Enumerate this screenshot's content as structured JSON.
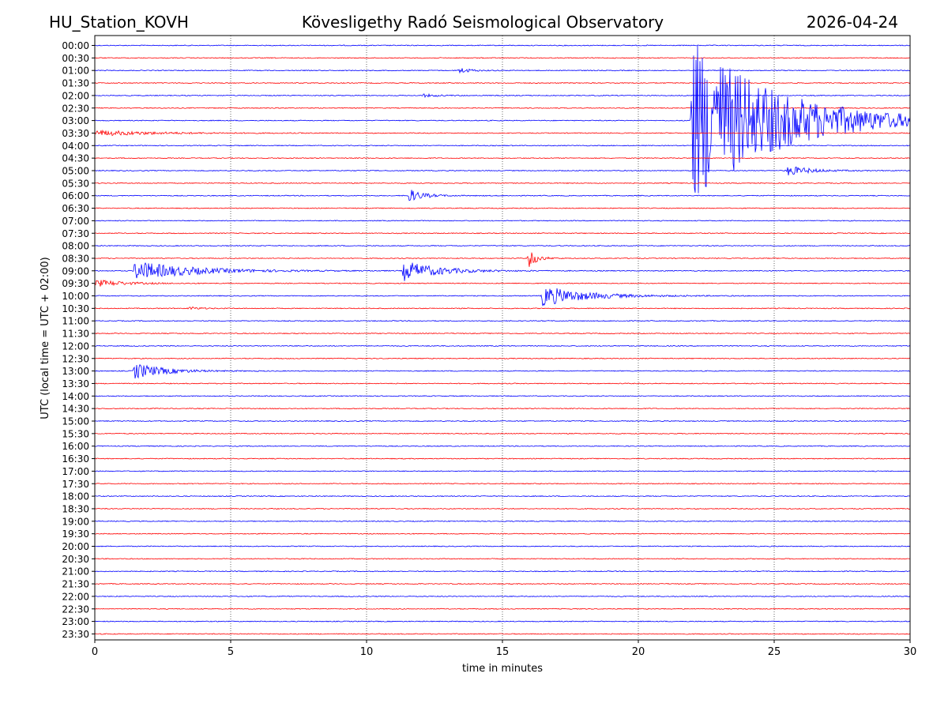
{
  "chart_data": {
    "type": "line",
    "title_left": "HU_Station_KOVH",
    "title_center": "Kövesligethy Radó Seismological Observatory",
    "title_right": "2026-04-24",
    "xlabel": "time in minutes",
    "ylabel": "UTC (local time = UTC + 02:00)",
    "xlim": [
      0,
      30
    ],
    "xticks": [
      0,
      5,
      10,
      15,
      20,
      25,
      30
    ],
    "grid": "vertical dotted at x ticks",
    "colors": [
      "#0000ff",
      "#ff0000"
    ],
    "rows": [
      "00:00",
      "00:30",
      "01:00",
      "01:30",
      "02:00",
      "02:30",
      "03:00",
      "03:30",
      "04:00",
      "04:30",
      "05:00",
      "05:30",
      "06:00",
      "06:30",
      "07:00",
      "07:30",
      "08:00",
      "08:30",
      "09:00",
      "09:30",
      "10:00",
      "10:30",
      "11:00",
      "11:30",
      "12:00",
      "12:30",
      "13:00",
      "13:30",
      "14:00",
      "14:30",
      "15:00",
      "15:30",
      "16:00",
      "16:30",
      "17:00",
      "17:30",
      "18:00",
      "18:30",
      "19:00",
      "19:30",
      "20:00",
      "20:30",
      "21:00",
      "21:30",
      "22:00",
      "22:30",
      "23:00",
      "23:30"
    ],
    "events": [
      {
        "row": 2,
        "start_min": 13.3,
        "amp": 0.6,
        "decay_min": 0.4
      },
      {
        "row": 4,
        "start_min": 12.0,
        "amp": 0.25,
        "decay_min": 0.6
      },
      {
        "row": 6,
        "start_min": 21.9,
        "amp": 14,
        "decay_min": 3.0
      },
      {
        "row": 7,
        "start_min": 0.0,
        "amp": 0.45,
        "decay_min": 2.0
      },
      {
        "row": 10,
        "start_min": 25.4,
        "amp": 0.9,
        "decay_min": 0.8
      },
      {
        "row": 12,
        "start_min": 11.5,
        "amp": 1.2,
        "decay_min": 0.5
      },
      {
        "row": 17,
        "start_min": 15.9,
        "amp": 1.8,
        "decay_min": 0.3
      },
      {
        "row": 18,
        "start_min": 1.4,
        "amp": 1.6,
        "decay_min": 2.0
      },
      {
        "row": 18,
        "start_min": 11.3,
        "amp": 1.7,
        "decay_min": 1.2
      },
      {
        "row": 19,
        "start_min": 0.0,
        "amp": 0.6,
        "decay_min": 1.0
      },
      {
        "row": 20,
        "start_min": 16.4,
        "amp": 1.7,
        "decay_min": 1.5
      },
      {
        "row": 21,
        "start_min": 3.4,
        "amp": 0.3,
        "decay_min": 0.4
      },
      {
        "row": 26,
        "start_min": 1.4,
        "amp": 1.4,
        "decay_min": 1.0
      }
    ]
  }
}
